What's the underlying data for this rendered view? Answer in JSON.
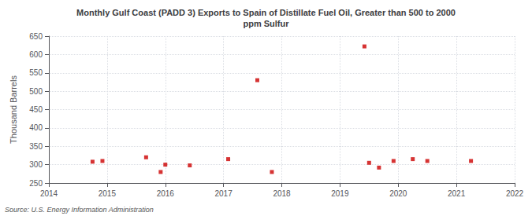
{
  "chart_data": {
    "type": "scatter",
    "title": "Monthly Gulf Coast (PADD 3) Exports to Spain of Distillate Fuel Oil, Greater than 500 to 2000\nppm Sulfur",
    "ylabel": "Thousand Barrels",
    "annotations": [
      "Source: U.S. Energy Information Administration"
    ],
    "x": [
      2014.75,
      2014.92,
      2015.67,
      2015.92,
      2016.0,
      2016.42,
      2017.08,
      2017.58,
      2017.83,
      2019.42,
      2019.5,
      2019.67,
      2019.92,
      2020.25,
      2020.5,
      2021.25
    ],
    "values": [
      308,
      310,
      320,
      280,
      300,
      298,
      315,
      530,
      280,
      622,
      305,
      292,
      310,
      315,
      310,
      310
    ],
    "color": "#cc0000",
    "marker": "square",
    "xlim": [
      2014,
      2022
    ],
    "xticks": [
      2014,
      2015,
      2016,
      2017,
      2018,
      2019,
      2020,
      2021,
      2022
    ],
    "ylim": [
      250,
      650
    ],
    "yticks": [
      250,
      300,
      350,
      400,
      450,
      500,
      550,
      600,
      650
    ],
    "grid": true
  }
}
